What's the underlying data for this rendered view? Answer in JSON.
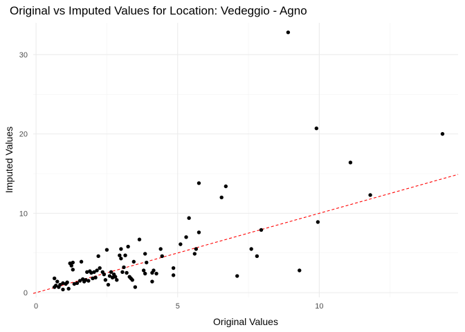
{
  "chart_data": {
    "type": "scatter",
    "title": "Original vs Imputed Values for Location: Vedeggio - Agno",
    "xlabel": "Original Values",
    "ylabel": "Imputed Values",
    "xlim": [
      -0.1,
      14.9
    ],
    "ylim": [
      -0.6,
      34.0
    ],
    "x_ticks": [
      0,
      5,
      10
    ],
    "y_ticks": [
      0,
      10,
      20,
      30
    ],
    "grid": true,
    "legend": "none",
    "point_color": "#000000",
    "reference_line": {
      "slope": 1,
      "intercept": 0,
      "style": "dashed",
      "color": "#ff0000"
    },
    "points": [
      [
        0.65,
        1.8
      ],
      [
        0.65,
        0.7
      ],
      [
        0.7,
        0.9
      ],
      [
        0.75,
        1.4
      ],
      [
        0.8,
        0.7
      ],
      [
        0.85,
        1.0
      ],
      [
        0.95,
        1.2
      ],
      [
        0.95,
        0.4
      ],
      [
        1.05,
        1.1
      ],
      [
        1.1,
        1.3
      ],
      [
        1.15,
        0.5
      ],
      [
        1.2,
        3.7
      ],
      [
        1.25,
        3.4
      ],
      [
        1.3,
        2.9
      ],
      [
        1.3,
        3.8
      ],
      [
        1.35,
        1.1
      ],
      [
        1.45,
        1.2
      ],
      [
        1.55,
        1.5
      ],
      [
        1.6,
        3.9
      ],
      [
        1.65,
        1.7
      ],
      [
        1.7,
        1.4
      ],
      [
        1.75,
        1.6
      ],
      [
        1.8,
        2.6
      ],
      [
        1.85,
        1.5
      ],
      [
        1.9,
        2.7
      ],
      [
        1.95,
        2.5
      ],
      [
        2.0,
        1.8
      ],
      [
        2.05,
        2.6
      ],
      [
        2.1,
        1.9
      ],
      [
        2.15,
        2.8
      ],
      [
        2.2,
        4.6
      ],
      [
        2.25,
        3.1
      ],
      [
        2.35,
        2.6
      ],
      [
        2.4,
        2.3
      ],
      [
        2.45,
        1.6
      ],
      [
        2.5,
        5.4
      ],
      [
        2.55,
        1.0
      ],
      [
        2.6,
        2.1
      ],
      [
        2.65,
        2.6
      ],
      [
        2.7,
        1.9
      ],
      [
        2.75,
        2.3
      ],
      [
        2.8,
        2.0
      ],
      [
        2.85,
        1.6
      ],
      [
        2.95,
        4.7
      ],
      [
        3.0,
        5.5
      ],
      [
        3.0,
        4.3
      ],
      [
        3.05,
        2.6
      ],
      [
        3.1,
        3.2
      ],
      [
        3.15,
        4.7
      ],
      [
        3.2,
        2.5
      ],
      [
        3.25,
        5.8
      ],
      [
        3.3,
        2.0
      ],
      [
        3.35,
        1.8
      ],
      [
        3.4,
        1.6
      ],
      [
        3.45,
        3.9
      ],
      [
        3.5,
        0.7
      ],
      [
        3.65,
        6.7
      ],
      [
        3.8,
        2.8
      ],
      [
        3.85,
        2.4
      ],
      [
        3.85,
        4.9
      ],
      [
        3.9,
        3.8
      ],
      [
        4.1,
        2.5
      ],
      [
        4.1,
        1.4
      ],
      [
        4.15,
        2.8
      ],
      [
        4.25,
        2.4
      ],
      [
        4.4,
        5.5
      ],
      [
        4.45,
        4.6
      ],
      [
        4.85,
        2.2
      ],
      [
        4.85,
        3.1
      ],
      [
        5.1,
        6.1
      ],
      [
        5.3,
        7.0
      ],
      [
        5.4,
        9.4
      ],
      [
        5.6,
        4.9
      ],
      [
        5.65,
        5.5
      ],
      [
        5.75,
        13.8
      ],
      [
        5.75,
        7.6
      ],
      [
        6.55,
        12.0
      ],
      [
        6.7,
        13.4
      ],
      [
        7.1,
        2.1
      ],
      [
        7.6,
        5.5
      ],
      [
        7.8,
        4.6
      ],
      [
        7.95,
        7.9
      ],
      [
        8.9,
        32.8
      ],
      [
        9.3,
        2.8
      ],
      [
        9.9,
        20.7
      ],
      [
        9.95,
        8.9
      ],
      [
        11.1,
        16.4
      ],
      [
        11.8,
        12.3
      ],
      [
        14.35,
        20.0
      ]
    ]
  }
}
